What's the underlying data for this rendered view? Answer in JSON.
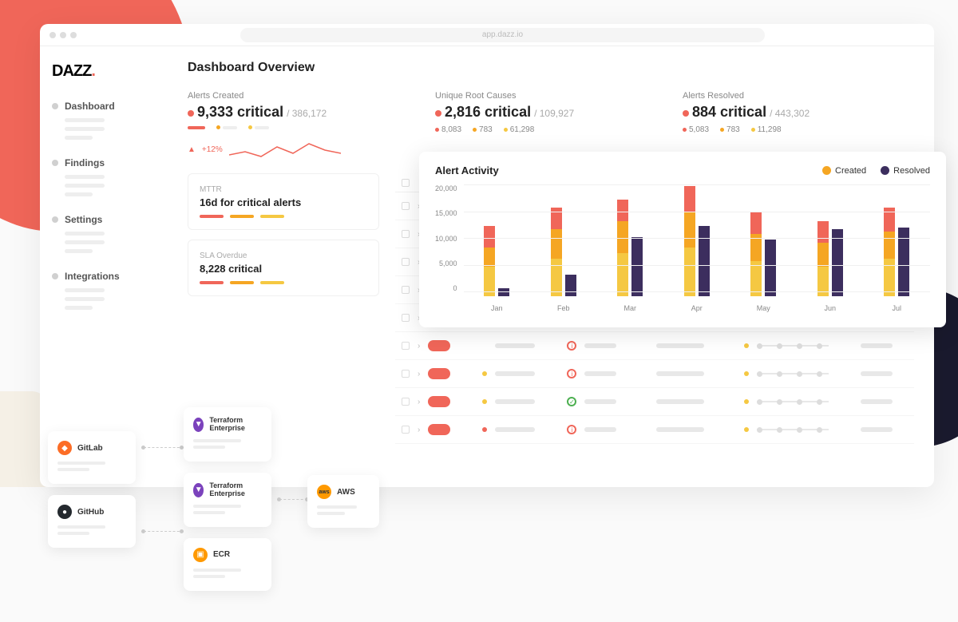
{
  "url": "app.dazz.io",
  "logo": "DAZZ",
  "logo_period": ".",
  "page_title": "Dashboard Overview",
  "colors": {
    "coral": "#f06659",
    "orange": "#f5a623",
    "yellow": "#f5c842",
    "purple": "#3c2e5e",
    "grey": "#e0e0e0"
  },
  "nav": [
    {
      "label": "Dashboard"
    },
    {
      "label": "Findings"
    },
    {
      "label": "Settings"
    },
    {
      "label": "Integrations"
    }
  ],
  "stats": {
    "alerts_created": {
      "label": "Alerts Created",
      "critical": "9,333 critical",
      "total": "/ 386,172",
      "trend_pct": "+12%"
    },
    "root_causes": {
      "label": "Unique Root Causes",
      "critical": "2,816 critical",
      "total": "/ 109,927",
      "subs": [
        "8,083",
        "783",
        "61,298"
      ]
    },
    "resolved": {
      "label": "Alerts Resolved",
      "critical": "884 critical",
      "total": "/ 443,302",
      "subs": [
        "5,083",
        "783",
        "11,298"
      ]
    }
  },
  "mttr": {
    "label": "MTTR",
    "value": "16d for critical alerts"
  },
  "sla": {
    "label": "SLA Overdue",
    "value": "8,228 critical"
  },
  "chart": {
    "title": "Alert Activity",
    "legend_created": "Created",
    "legend_resolved": "Resolved",
    "y_ticks": [
      "20,000",
      "15,000",
      "10,000",
      "5,000",
      "0"
    ],
    "y_max": 20000,
    "months": [
      {
        "label": "Jan",
        "created": [
          5500,
          3500,
          4000
        ],
        "resolved": 1500
      },
      {
        "label": "Feb",
        "created": [
          7000,
          5500,
          4000
        ],
        "resolved": 4000
      },
      {
        "label": "Mar",
        "created": [
          8000,
          6000,
          4000
        ],
        "resolved": 11000
      },
      {
        "label": "Apr",
        "created": [
          9000,
          6500,
          5000
        ],
        "resolved": 13000
      },
      {
        "label": "May",
        "created": [
          6500,
          5000,
          4000
        ],
        "resolved": 10500
      },
      {
        "label": "Jun",
        "created": [
          5500,
          4500,
          4000
        ],
        "resolved": 12500
      },
      {
        "label": "Jul",
        "created": [
          7000,
          5000,
          4500
        ],
        "resolved": 12800
      }
    ],
    "stack_colors": [
      "#f5c842",
      "#f5a623",
      "#f06659"
    ],
    "resolved_color": "#3c2e5e"
  },
  "table_rows": [
    {
      "status": "info",
      "dot1": "#f06659"
    },
    {
      "status": "info",
      "dot1": "#f06659"
    },
    {
      "status": "info",
      "dot1": null
    },
    {
      "status": "info",
      "dot1": "#f06659"
    },
    {
      "status": "info",
      "dot1": "#f06659"
    },
    {
      "status": "info",
      "dot1": null
    },
    {
      "status": "info",
      "dot1": "#f5c842"
    },
    {
      "status": "success",
      "dot1": "#f5c842"
    },
    {
      "status": "info",
      "dot1": "#f06659"
    }
  ],
  "integrations": {
    "gitlab": "GitLab",
    "github": "GitHub",
    "tf1": "Terraform Enterprise",
    "tf2": "Terraform Enterprise",
    "ecr": "ECR",
    "aws": "AWS"
  }
}
